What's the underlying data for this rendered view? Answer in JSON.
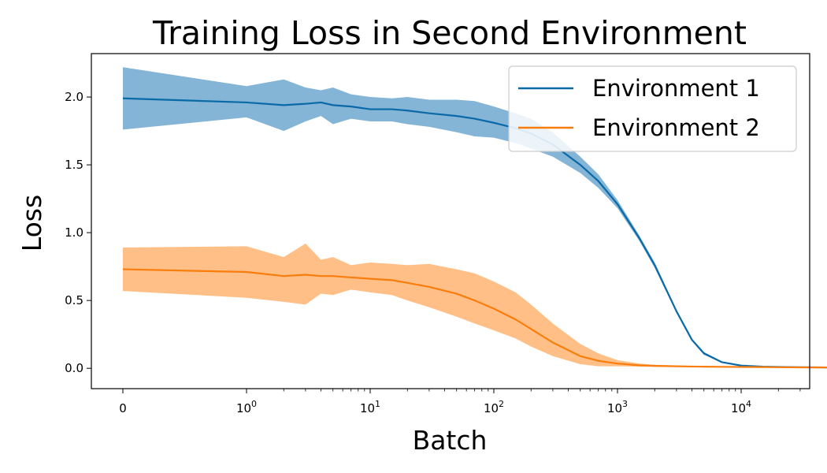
{
  "chart_data": {
    "type": "line",
    "title": "Training Loss in Second Environment",
    "xlabel": "Batch",
    "ylabel": "Loss",
    "xscale": "symlog",
    "xlim": [
      -0.5,
      70000
    ],
    "ylim": [
      -0.15,
      2.32
    ],
    "x_ticks": [
      0,
      1,
      10,
      100,
      1000,
      10000
    ],
    "x_tick_labels": [
      {
        "base": "0",
        "exp": ""
      },
      {
        "base": "10",
        "exp": "0"
      },
      {
        "base": "10",
        "exp": "1"
      },
      {
        "base": "10",
        "exp": "2"
      },
      {
        "base": "10",
        "exp": "3"
      },
      {
        "base": "10",
        "exp": "4"
      }
    ],
    "y_ticks": [
      "0.0",
      "0.5",
      "1.0",
      "1.5",
      "2.0"
    ],
    "grid": false,
    "legend_position": "upper-right",
    "series": [
      {
        "name": "Environment 1",
        "color": "#1f77b4",
        "line_color": "#0a6aa8",
        "x": [
          0,
          1,
          2,
          3,
          4,
          5,
          7,
          10,
          15,
          20,
          30,
          50,
          70,
          100,
          150,
          200,
          300,
          500,
          700,
          1000,
          1500,
          2000,
          3000,
          4000,
          5000,
          7000,
          10000,
          15000,
          20000,
          30000,
          50000
        ],
        "y": [
          1.99,
          1.96,
          1.94,
          1.95,
          1.96,
          1.94,
          1.93,
          1.91,
          1.91,
          1.9,
          1.88,
          1.86,
          1.84,
          1.81,
          1.77,
          1.73,
          1.65,
          1.5,
          1.38,
          1.21,
          0.96,
          0.76,
          0.42,
          0.21,
          0.11,
          0.045,
          0.02,
          0.012,
          0.01,
          0.008,
          0.006
        ],
        "lower": [
          1.76,
          1.85,
          1.75,
          1.82,
          1.86,
          1.8,
          1.84,
          1.82,
          1.82,
          1.8,
          1.78,
          1.74,
          1.71,
          1.7,
          1.66,
          1.62,
          1.56,
          1.44,
          1.33,
          1.18,
          0.94,
          0.74,
          0.41,
          0.2,
          0.1,
          0.04,
          0.018,
          0.011,
          0.009,
          0.007,
          0.005
        ],
        "upper": [
          2.22,
          2.08,
          2.13,
          2.07,
          2.05,
          2.07,
          2.02,
          2.0,
          1.99,
          2.0,
          1.98,
          1.98,
          1.97,
          1.93,
          1.88,
          1.84,
          1.74,
          1.56,
          1.43,
          1.24,
          0.98,
          0.78,
          0.43,
          0.22,
          0.12,
          0.05,
          0.022,
          0.013,
          0.011,
          0.009,
          0.007
        ]
      },
      {
        "name": "Environment 2",
        "color": "#ff7f0e",
        "line_color": "#f97d0c",
        "x": [
          0,
          1,
          2,
          3,
          4,
          5,
          7,
          10,
          15,
          20,
          30,
          50,
          70,
          100,
          150,
          200,
          300,
          500,
          700,
          1000,
          1500,
          2000,
          3000,
          4000,
          5000,
          7000,
          10000,
          15000,
          20000,
          30000,
          50000
        ],
        "y": [
          0.73,
          0.71,
          0.68,
          0.69,
          0.68,
          0.68,
          0.67,
          0.66,
          0.65,
          0.63,
          0.6,
          0.55,
          0.5,
          0.44,
          0.36,
          0.29,
          0.19,
          0.09,
          0.055,
          0.035,
          0.022,
          0.018,
          0.015,
          0.013,
          0.012,
          0.011,
          0.01,
          0.009,
          0.008,
          0.007,
          0.006
        ],
        "lower": [
          0.57,
          0.52,
          0.49,
          0.47,
          0.55,
          0.54,
          0.58,
          0.56,
          0.54,
          0.5,
          0.45,
          0.38,
          0.33,
          0.28,
          0.22,
          0.16,
          0.09,
          0.03,
          0.015,
          0.015,
          0.012,
          0.011,
          0.01,
          0.009,
          0.009,
          0.008,
          0.008,
          0.007,
          0.006,
          0.005,
          0.004
        ],
        "upper": [
          0.89,
          0.9,
          0.82,
          0.92,
          0.8,
          0.82,
          0.76,
          0.78,
          0.77,
          0.76,
          0.77,
          0.73,
          0.7,
          0.64,
          0.56,
          0.47,
          0.33,
          0.18,
          0.11,
          0.06,
          0.035,
          0.026,
          0.021,
          0.018,
          0.016,
          0.014,
          0.012,
          0.011,
          0.01,
          0.009,
          0.008
        ]
      }
    ]
  }
}
